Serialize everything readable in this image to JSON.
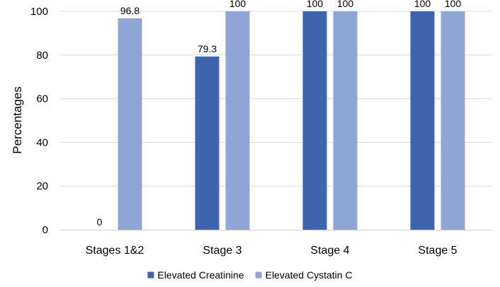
{
  "chart_data": {
    "type": "bar",
    "title": "",
    "xlabel": "",
    "ylabel": "Percentages",
    "categories": [
      "Stages 1&2",
      "Stage 3",
      "Stage 4",
      "Stage 5"
    ],
    "series": [
      {
        "name": "Elevated Creatinine",
        "color": "#3d64ad",
        "values": [
          0,
          79.3,
          100,
          100
        ],
        "labels": [
          "0",
          "79.3",
          "100",
          "100"
        ]
      },
      {
        "name": "Elevated Cystatin C",
        "color": "#8fa5d6",
        "values": [
          96.8,
          100,
          100,
          100
        ],
        "labels": [
          "96.8",
          "100",
          "100",
          "100"
        ]
      }
    ],
    "ylim": [
      0,
      100
    ],
    "yticks": [
      0,
      20,
      40,
      60,
      80,
      100
    ],
    "grid": true,
    "legend_position": "bottom-center"
  }
}
